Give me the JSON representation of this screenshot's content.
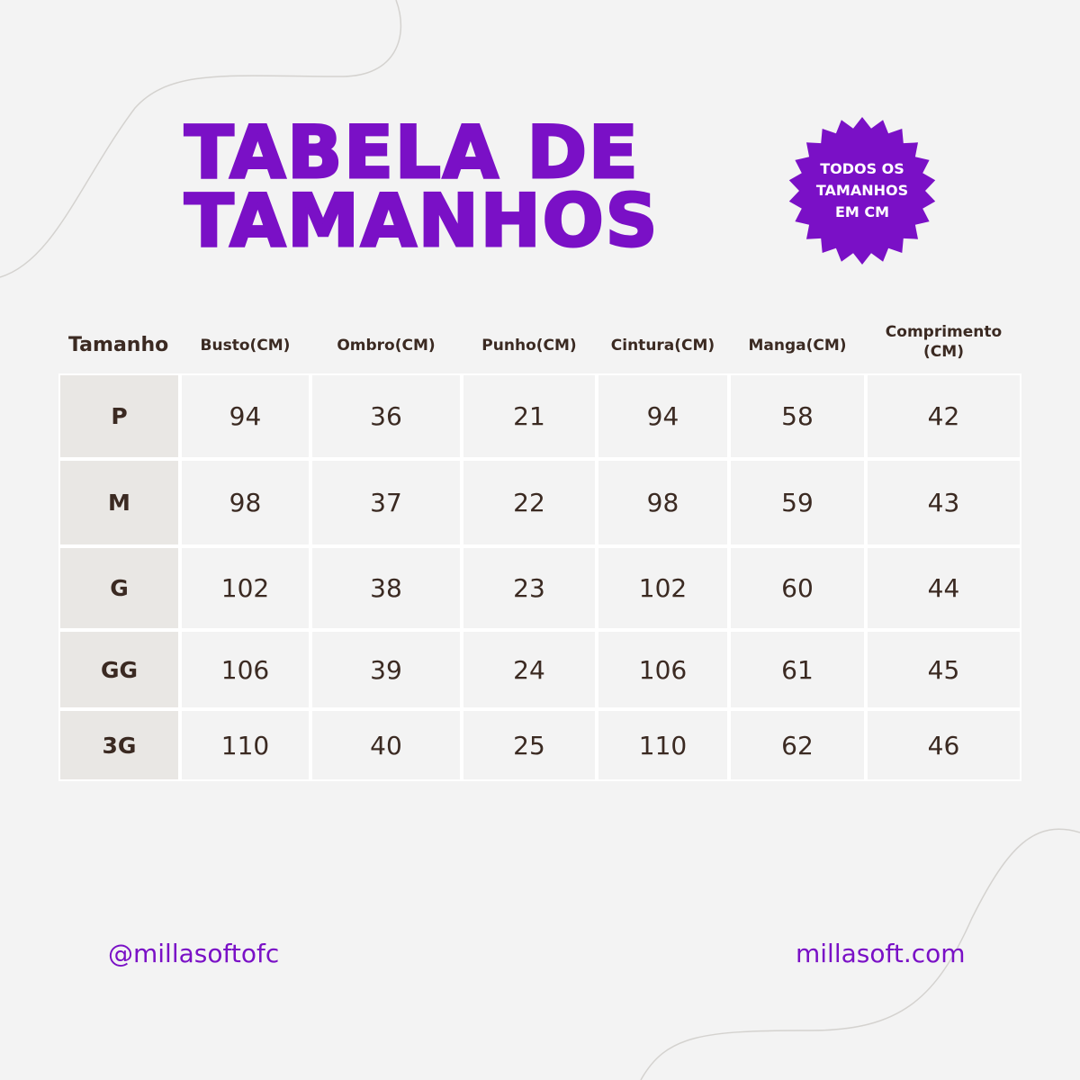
{
  "title": {
    "line1": "TABELA DE",
    "line2": "TAMANHOS"
  },
  "badge": {
    "line1": "TODOS OS",
    "line2": "TAMANHOS",
    "line3": "EM CM"
  },
  "colors": {
    "accent": "#7a10c6",
    "text": "#3b2a22",
    "background": "#f3f3f3",
    "size_column": "#e9e7e4"
  },
  "table": {
    "headers": [
      "Tamanho",
      "Busto(CM)",
      "Ombro(CM)",
      "Punho(CM)",
      "Cintura(CM)",
      "Manga(CM)",
      "Comprimento (CM)"
    ],
    "rows": [
      [
        "P",
        "94",
        "36",
        "21",
        "94",
        "58",
        "42"
      ],
      [
        "M",
        "98",
        "37",
        "22",
        "98",
        "59",
        "43"
      ],
      [
        "G",
        "102",
        "38",
        "23",
        "102",
        "60",
        "44"
      ],
      [
        "GG",
        "106",
        "39",
        "24",
        "106",
        "61",
        "45"
      ],
      [
        "3G",
        "110",
        "40",
        "25",
        "110",
        "62",
        "46"
      ]
    ]
  },
  "footer": {
    "instagram": "@millasoftofc",
    "website": "millasoft.com"
  }
}
